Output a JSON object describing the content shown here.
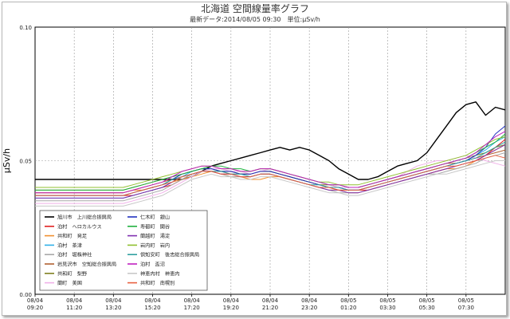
{
  "title": "北海道 空間線量率グラフ",
  "subtitle": "最新データ:2014/08/05 09:30　単位:μSv/h",
  "chart_data": {
    "type": "line",
    "ylabel": "μSv/h",
    "ylim": [
      0,
      0.1
    ],
    "yticks": [
      {
        "value": 0.0,
        "label": "0.00"
      },
      {
        "value": 0.05,
        "label": "0.05"
      },
      {
        "value": 0.1,
        "label": "0.10"
      }
    ],
    "xlim": [
      0,
      24
    ],
    "xticks": [
      {
        "x": 0,
        "date": "08/04",
        "time": "09:20"
      },
      {
        "x": 2,
        "date": "08/04",
        "time": "11:20"
      },
      {
        "x": 4,
        "date": "08/04",
        "time": "13:20"
      },
      {
        "x": 6,
        "date": "08/04",
        "time": "15:20"
      },
      {
        "x": 8,
        "date": "08/04",
        "time": "17:20"
      },
      {
        "x": 10,
        "date": "08/04",
        "time": "19:20"
      },
      {
        "x": 12,
        "date": "08/04",
        "time": "21:20"
      },
      {
        "x": 14,
        "date": "08/04",
        "time": "23:20"
      },
      {
        "x": 16,
        "date": "08/05",
        "time": "01:20"
      },
      {
        "x": 18,
        "date": "08/05",
        "time": "03:30"
      },
      {
        "x": 20,
        "date": "08/05",
        "time": "05:30"
      },
      {
        "x": 22,
        "date": "08/05",
        "time": "07:30"
      }
    ],
    "x": [
      0,
      0.5,
      1,
      1.5,
      2,
      2.5,
      3,
      3.5,
      4,
      4.5,
      5,
      5.5,
      6,
      6.5,
      7,
      7.5,
      8,
      8.5,
      9,
      9.5,
      10,
      10.5,
      11,
      11.5,
      12,
      12.5,
      13,
      13.5,
      14,
      14.5,
      15,
      15.5,
      16,
      16.5,
      17,
      17.5,
      18,
      18.5,
      19,
      19.5,
      20,
      20.5,
      21,
      21.5,
      22,
      22.5,
      23,
      23.5,
      24
    ],
    "legend_position": "bottom-left",
    "series": [
      {
        "name": "旭川市　上川総合振興局",
        "color": "#000000",
        "values": [
          0.043,
          0.043,
          0.043,
          0.043,
          0.043,
          0.043,
          0.043,
          0.043,
          0.043,
          0.043,
          0.043,
          0.043,
          0.043,
          0.043,
          0.043,
          0.043,
          0.044,
          0.046,
          0.048,
          0.049,
          0.05,
          0.051,
          0.052,
          0.053,
          0.054,
          0.055,
          0.054,
          0.055,
          0.054,
          0.052,
          0.05,
          0.047,
          0.045,
          0.043,
          0.043,
          0.044,
          0.046,
          0.048,
          0.049,
          0.05,
          0.053,
          0.058,
          0.063,
          0.068,
          0.071,
          0.072,
          0.067,
          0.07,
          0.069
        ]
      },
      {
        "name": "泊村　ヘロカルウス",
        "color": "#e02020",
        "values": [
          0.037,
          0.037,
          0.037,
          0.037,
          0.037,
          0.037,
          0.037,
          0.037,
          0.037,
          0.037,
          0.037,
          0.038,
          0.039,
          0.04,
          0.041,
          0.043,
          0.045,
          0.046,
          0.046,
          0.045,
          0.045,
          0.044,
          0.044,
          0.045,
          0.045,
          0.044,
          0.043,
          0.042,
          0.041,
          0.04,
          0.04,
          0.039,
          0.039,
          0.039,
          0.039,
          0.04,
          0.041,
          0.042,
          0.043,
          0.044,
          0.045,
          0.046,
          0.047,
          0.048,
          0.049,
          0.05,
          0.052,
          0.055,
          0.058
        ]
      },
      {
        "name": "共和町　発足",
        "color": "#f09030",
        "values": [
          0.038,
          0.038,
          0.038,
          0.038,
          0.038,
          0.038,
          0.038,
          0.038,
          0.038,
          0.038,
          0.039,
          0.039,
          0.04,
          0.041,
          0.042,
          0.043,
          0.044,
          0.045,
          0.046,
          0.045,
          0.044,
          0.044,
          0.043,
          0.043,
          0.044,
          0.044,
          0.043,
          0.042,
          0.041,
          0.04,
          0.039,
          0.039,
          0.038,
          0.038,
          0.039,
          0.04,
          0.041,
          0.042,
          0.043,
          0.044,
          0.045,
          0.046,
          0.047,
          0.047,
          0.048,
          0.05,
          0.052,
          0.054,
          0.056
        ]
      },
      {
        "name": "泊村　茶津",
        "color": "#30b0e8",
        "values": [
          0.036,
          0.036,
          0.036,
          0.036,
          0.036,
          0.036,
          0.036,
          0.036,
          0.036,
          0.036,
          0.037,
          0.038,
          0.039,
          0.04,
          0.042,
          0.044,
          0.046,
          0.047,
          0.047,
          0.046,
          0.046,
          0.045,
          0.045,
          0.046,
          0.046,
          0.045,
          0.044,
          0.043,
          0.042,
          0.041,
          0.04,
          0.04,
          0.039,
          0.039,
          0.04,
          0.041,
          0.042,
          0.043,
          0.044,
          0.045,
          0.046,
          0.047,
          0.048,
          0.049,
          0.05,
          0.052,
          0.054,
          0.057,
          0.059
        ]
      },
      {
        "name": "泊村　堀株神社",
        "color": "#a8a8a8",
        "values": [
          0.035,
          0.035,
          0.035,
          0.035,
          0.035,
          0.035,
          0.035,
          0.035,
          0.035,
          0.035,
          0.036,
          0.037,
          0.038,
          0.039,
          0.041,
          0.043,
          0.045,
          0.046,
          0.046,
          0.045,
          0.044,
          0.044,
          0.044,
          0.045,
          0.045,
          0.044,
          0.043,
          0.042,
          0.041,
          0.04,
          0.039,
          0.038,
          0.038,
          0.038,
          0.039,
          0.04,
          0.041,
          0.042,
          0.043,
          0.044,
          0.045,
          0.045,
          0.046,
          0.047,
          0.048,
          0.049,
          0.051,
          0.052,
          0.053
        ]
      },
      {
        "name": "岩見沢市　空知総合振興局",
        "color": "#b06030",
        "values": [
          0.038,
          0.038,
          0.038,
          0.038,
          0.038,
          0.038,
          0.038,
          0.038,
          0.038,
          0.038,
          0.039,
          0.04,
          0.041,
          0.042,
          0.043,
          0.044,
          0.045,
          0.046,
          0.046,
          0.046,
          0.045,
          0.045,
          0.045,
          0.046,
          0.046,
          0.045,
          0.044,
          0.043,
          0.042,
          0.041,
          0.04,
          0.04,
          0.04,
          0.04,
          0.041,
          0.042,
          0.043,
          0.044,
          0.045,
          0.046,
          0.047,
          0.048,
          0.049,
          0.049,
          0.05,
          0.051,
          0.052,
          0.053,
          0.054
        ]
      },
      {
        "name": "共和町　梨野",
        "color": "#808020",
        "values": [
          0.039,
          0.039,
          0.039,
          0.039,
          0.039,
          0.039,
          0.039,
          0.039,
          0.039,
          0.039,
          0.04,
          0.041,
          0.042,
          0.043,
          0.044,
          0.045,
          0.046,
          0.047,
          0.047,
          0.046,
          0.046,
          0.045,
          0.045,
          0.046,
          0.046,
          0.045,
          0.044,
          0.043,
          0.042,
          0.041,
          0.041,
          0.04,
          0.04,
          0.04,
          0.041,
          0.042,
          0.043,
          0.044,
          0.045,
          0.046,
          0.047,
          0.048,
          0.049,
          0.05,
          0.051,
          0.052,
          0.053,
          0.055,
          0.056
        ]
      },
      {
        "name": "蘭町　美国",
        "color": "#f0b0e8",
        "values": [
          0.034,
          0.034,
          0.034,
          0.034,
          0.034,
          0.034,
          0.034,
          0.034,
          0.034,
          0.034,
          0.035,
          0.036,
          0.037,
          0.038,
          0.04,
          0.042,
          0.044,
          0.046,
          0.047,
          0.047,
          0.046,
          0.046,
          0.045,
          0.046,
          0.047,
          0.046,
          0.045,
          0.044,
          0.043,
          0.042,
          0.041,
          0.04,
          0.04,
          0.04,
          0.041,
          0.042,
          0.043,
          0.044,
          0.046,
          0.048,
          0.049,
          0.05,
          0.05,
          0.051,
          0.052,
          0.051,
          0.05,
          0.049,
          0.048
        ]
      },
      {
        "name": "仁木町　銀山",
        "color": "#2030c0",
        "values": [
          0.037,
          0.037,
          0.037,
          0.037,
          0.037,
          0.037,
          0.037,
          0.037,
          0.037,
          0.037,
          0.038,
          0.039,
          0.04,
          0.041,
          0.043,
          0.045,
          0.046,
          0.047,
          0.047,
          0.046,
          0.046,
          0.045,
          0.045,
          0.046,
          0.046,
          0.045,
          0.044,
          0.043,
          0.042,
          0.041,
          0.04,
          0.04,
          0.039,
          0.039,
          0.04,
          0.041,
          0.042,
          0.043,
          0.044,
          0.045,
          0.046,
          0.047,
          0.048,
          0.049,
          0.05,
          0.052,
          0.055,
          0.06,
          0.063
        ]
      },
      {
        "name": "寿都町　開谷",
        "color": "#20b040",
        "values": [
          0.039,
          0.039,
          0.039,
          0.039,
          0.039,
          0.039,
          0.039,
          0.039,
          0.039,
          0.039,
          0.04,
          0.041,
          0.042,
          0.043,
          0.044,
          0.045,
          0.046,
          0.047,
          0.048,
          0.048,
          0.047,
          0.047,
          0.046,
          0.047,
          0.047,
          0.046,
          0.045,
          0.044,
          0.043,
          0.042,
          0.041,
          0.041,
          0.04,
          0.04,
          0.041,
          0.042,
          0.043,
          0.044,
          0.045,
          0.046,
          0.047,
          0.048,
          0.049,
          0.05,
          0.051,
          0.053,
          0.055,
          0.057,
          0.06
        ]
      },
      {
        "name": "蘭越町　湯淀",
        "color": "#8030b0",
        "values": [
          0.036,
          0.036,
          0.036,
          0.036,
          0.036,
          0.036,
          0.036,
          0.036,
          0.036,
          0.036,
          0.037,
          0.038,
          0.039,
          0.04,
          0.042,
          0.044,
          0.045,
          0.046,
          0.046,
          0.045,
          0.045,
          0.044,
          0.044,
          0.045,
          0.045,
          0.044,
          0.043,
          0.042,
          0.041,
          0.04,
          0.039,
          0.039,
          0.038,
          0.038,
          0.039,
          0.04,
          0.041,
          0.042,
          0.043,
          0.044,
          0.045,
          0.046,
          0.047,
          0.048,
          0.049,
          0.05,
          0.052,
          0.054,
          0.056
        ]
      },
      {
        "name": "岩内町　岩内",
        "color": "#90c030",
        "values": [
          0.04,
          0.04,
          0.04,
          0.04,
          0.04,
          0.04,
          0.04,
          0.04,
          0.04,
          0.04,
          0.041,
          0.042,
          0.043,
          0.044,
          0.045,
          0.046,
          0.047,
          0.048,
          0.048,
          0.047,
          0.047,
          0.046,
          0.046,
          0.047,
          0.047,
          0.046,
          0.045,
          0.044,
          0.043,
          0.042,
          0.042,
          0.041,
          0.041,
          0.041,
          0.042,
          0.043,
          0.044,
          0.045,
          0.046,
          0.047,
          0.048,
          0.049,
          0.05,
          0.051,
          0.052,
          0.054,
          0.056,
          0.058,
          0.059
        ]
      },
      {
        "name": "倶知安町　後志総合振興局",
        "color": "#30a0a0",
        "values": [
          0.037,
          0.037,
          0.037,
          0.037,
          0.037,
          0.037,
          0.037,
          0.037,
          0.037,
          0.037,
          0.038,
          0.039,
          0.04,
          0.041,
          0.043,
          0.044,
          0.045,
          0.046,
          0.046,
          0.046,
          0.045,
          0.045,
          0.044,
          0.045,
          0.045,
          0.044,
          0.043,
          0.042,
          0.041,
          0.041,
          0.04,
          0.04,
          0.039,
          0.039,
          0.04,
          0.041,
          0.042,
          0.043,
          0.044,
          0.045,
          0.046,
          0.047,
          0.048,
          0.049,
          0.05,
          0.051,
          0.053,
          0.055,
          0.057
        ]
      },
      {
        "name": "泊村　盃沼",
        "color": "#c020c0",
        "values": [
          0.038,
          0.038,
          0.038,
          0.038,
          0.038,
          0.038,
          0.038,
          0.038,
          0.038,
          0.038,
          0.039,
          0.04,
          0.041,
          0.042,
          0.044,
          0.046,
          0.047,
          0.048,
          0.048,
          0.047,
          0.047,
          0.046,
          0.046,
          0.047,
          0.047,
          0.046,
          0.045,
          0.044,
          0.043,
          0.042,
          0.041,
          0.041,
          0.04,
          0.04,
          0.041,
          0.042,
          0.043,
          0.044,
          0.045,
          0.046,
          0.047,
          0.048,
          0.049,
          0.05,
          0.051,
          0.053,
          0.056,
          0.059,
          0.061
        ]
      },
      {
        "name": "神恵内村　神恵内",
        "color": "#c8c8c8",
        "values": [
          0.033,
          0.033,
          0.033,
          0.033,
          0.033,
          0.033,
          0.033,
          0.033,
          0.033,
          0.033,
          0.034,
          0.035,
          0.036,
          0.037,
          0.039,
          0.041,
          0.043,
          0.044,
          0.045,
          0.044,
          0.044,
          0.043,
          0.043,
          0.044,
          0.044,
          0.043,
          0.042,
          0.041,
          0.04,
          0.039,
          0.038,
          0.038,
          0.037,
          0.037,
          0.038,
          0.039,
          0.04,
          0.041,
          0.042,
          0.043,
          0.044,
          0.045,
          0.045,
          0.046,
          0.047,
          0.048,
          0.049,
          0.05,
          0.05
        ]
      },
      {
        "name": "共和町　南幌別",
        "color": "#e86040",
        "values": [
          0.037,
          0.037,
          0.037,
          0.037,
          0.037,
          0.037,
          0.037,
          0.037,
          0.037,
          0.037,
          0.038,
          0.039,
          0.04,
          0.041,
          0.042,
          0.044,
          0.045,
          0.046,
          0.046,
          0.045,
          0.045,
          0.044,
          0.044,
          0.045,
          0.045,
          0.044,
          0.043,
          0.042,
          0.041,
          0.04,
          0.04,
          0.039,
          0.039,
          0.039,
          0.04,
          0.041,
          0.042,
          0.043,
          0.044,
          0.045,
          0.046,
          0.047,
          0.048,
          0.048,
          0.049,
          0.05,
          0.051,
          0.052,
          0.051
        ]
      }
    ]
  }
}
